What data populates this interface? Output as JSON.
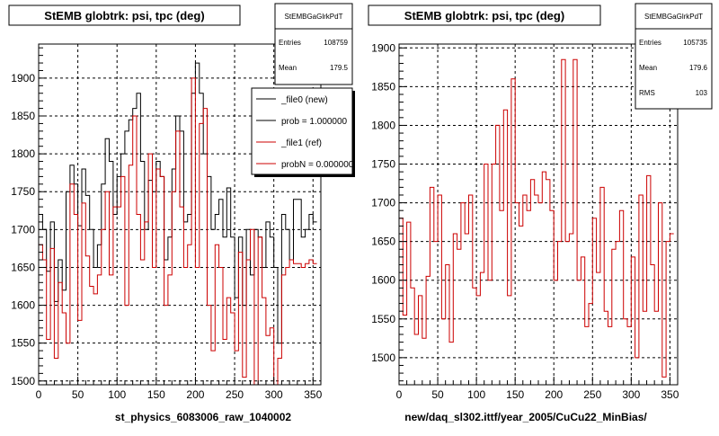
{
  "footer_text": "",
  "panels": [
    {
      "title": "StEMB globtrk: psi, tpc (deg)",
      "stats": {
        "name": "StEMBGaGlrkPdT",
        "rows": [
          {
            "label": "Entries",
            "value": "108759"
          },
          {
            "label": "Mean",
            "value": "179.5"
          }
        ]
      },
      "legend": [
        {
          "text": "_file0 (new)",
          "color": "#000000"
        },
        {
          "text": "prob = 1.000000",
          "color": "#000000"
        },
        {
          "text": "_file1 (ref)",
          "color": "#cc0000"
        },
        {
          "text": "probN = 0.000000",
          "color": "#cc0000"
        }
      ],
      "xlabel": "st_physics_6083006_raw_1040002"
    },
    {
      "title": "StEMB globtrk: psi, tpc (deg)",
      "stats": {
        "name": "StEMBGaGlrkPdT",
        "rows": [
          {
            "label": "Entries",
            "value": "105735"
          },
          {
            "label": "Mean",
            "value": "179.6"
          },
          {
            "label": "RMS",
            "value": "103"
          }
        ]
      },
      "legend": [],
      "xlabel": "new/daq_sl302.ittf/year_2005/CuCu22_MinBias/"
    }
  ],
  "chart_data": [
    {
      "type": "line",
      "step": true,
      "title": "StEMB globtrk: psi, tpc (deg)",
      "xlabel": "st_physics_6083006_raw_1040002",
      "xlim": [
        0,
        360
      ],
      "ylim": [
        1495,
        1945
      ],
      "xticks": [
        0,
        50,
        100,
        150,
        200,
        250,
        300,
        350
      ],
      "yticks": [
        1500,
        1550,
        1600,
        1650,
        1700,
        1750,
        1800,
        1850,
        1900
      ],
      "grid": true,
      "bin_width": 5,
      "series": [
        {
          "name": "_file0 (new)",
          "color": "#000000",
          "values": [
            1720,
            1700,
            1645,
            1710,
            1605,
            1660,
            1620,
            1750,
            1785,
            1760,
            1705,
            1780,
            1745,
            1700,
            1650,
            1680,
            1760,
            1820,
            1790,
            1720,
            1770,
            1800,
            1830,
            1845,
            1860,
            1880,
            1790,
            1700,
            1765,
            1750,
            1790,
            1770,
            1660,
            1690,
            1780,
            1850,
            1830,
            1710,
            1720,
            1880,
            1920,
            1880,
            1800,
            1770,
            1700,
            1720,
            1740,
            1690,
            1755,
            1690,
            1610,
            1690,
            1600,
            1700,
            1640,
            1700,
            1690,
            1650,
            1710,
            1690,
            1650,
            1550,
            1720,
            1700,
            1660,
            1740,
            1740,
            1690,
            1700,
            1720,
            1710
          ]
        },
        {
          "name": "_file1 (ref)",
          "color": "#cc0000",
          "values": [
            1680,
            1660,
            1555,
            1675,
            1530,
            1630,
            1590,
            1550,
            1760,
            1720,
            1580,
            1735,
            1665,
            1625,
            1615,
            1640,
            1700,
            1750,
            1640,
            1730,
            1730,
            1770,
            1600,
            1785,
            1850,
            1720,
            1660,
            1710,
            1800,
            1650,
            1780,
            1770,
            1600,
            1640,
            1750,
            1830,
            1730,
            1650,
            1680,
            1900,
            1650,
            1840,
            1860,
            1600,
            1540,
            1680,
            1650,
            1555,
            1610,
            1590,
            1540,
            1670,
            1505,
            1660,
            1700,
            1470,
            1690,
            1610,
            1560,
            1570,
            1460,
            1530,
            1640,
            1650,
            1660,
            1655,
            1655,
            1650,
            1655,
            1660,
            1655
          ]
        }
      ]
    },
    {
      "type": "line",
      "step": true,
      "title": "StEMB globtrk: psi, tpc (deg)",
      "xlabel": "new/daq_sl302.ittf/year_2005/CuCu22_MinBias/",
      "xlim": [
        0,
        360
      ],
      "ylim": [
        1465,
        1905
      ],
      "xticks": [
        0,
        50,
        100,
        150,
        200,
        250,
        300,
        350
      ],
      "yticks": [
        1500,
        1550,
        1600,
        1650,
        1700,
        1750,
        1800,
        1850,
        1900
      ],
      "grid": true,
      "bin_width": 5,
      "series": [
        {
          "name": "",
          "color": "#cc0000",
          "values": [
            1680,
            1555,
            1675,
            1590,
            1530,
            1580,
            1525,
            1605,
            1720,
            1650,
            1710,
            1550,
            1620,
            1520,
            1660,
            1640,
            1700,
            1660,
            1710,
            1590,
            1580,
            1610,
            1750,
            1600,
            1750,
            1800,
            1690,
            1820,
            1580,
            1860,
            1700,
            1670,
            1710,
            1690,
            1730,
            1710,
            1700,
            1740,
            1730,
            1690,
            1600,
            1650,
            1885,
            1650,
            1660,
            1885,
            1600,
            1630,
            1540,
            1570,
            1680,
            1610,
            1720,
            1560,
            1540,
            1640,
            1650,
            1690,
            1550,
            1540,
            1630,
            1500,
            1710,
            1560,
            1735,
            1620,
            1560,
            1700,
            1475,
            1650,
            1660
          ]
        }
      ]
    }
  ]
}
